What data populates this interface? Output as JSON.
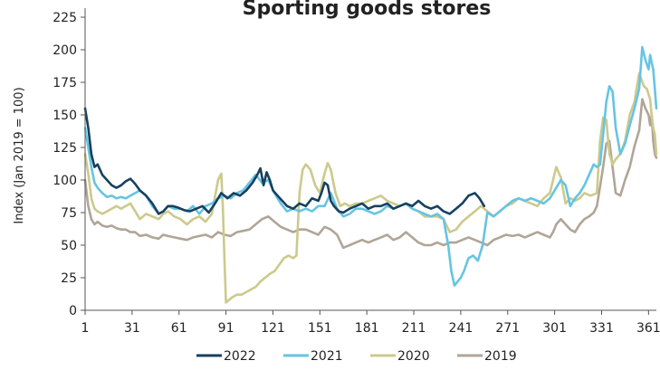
{
  "chart_data": {
    "type": "line",
    "title": "Sporting goods stores",
    "xlabel": "",
    "ylabel": "Index (Jan 2019 = 100)",
    "xlim": [
      1,
      366
    ],
    "ylim": [
      0,
      225
    ],
    "x_ticks": [
      1,
      31,
      61,
      91,
      121,
      151,
      181,
      211,
      241,
      271,
      301,
      331,
      361
    ],
    "y_ticks": [
      0,
      25,
      50,
      75,
      100,
      125,
      150,
      175,
      200,
      225
    ],
    "grid": false,
    "legend_position": "bottom",
    "series": [
      {
        "name": "2022",
        "color": "#17415f",
        "x": [
          1,
          3,
          5,
          7,
          9,
          12,
          15,
          18,
          21,
          24,
          27,
          30,
          33,
          36,
          40,
          44,
          48,
          51,
          54,
          57,
          60,
          64,
          68,
          72,
          76,
          80,
          84,
          88,
          92,
          96,
          100,
          104,
          108,
          111,
          113,
          115,
          117,
          119,
          121,
          124,
          127,
          130,
          134,
          138,
          142,
          146,
          150,
          152,
          154,
          156,
          158,
          160,
          163,
          166,
          170,
          174,
          178,
          182,
          186,
          190,
          194,
          198,
          202,
          206,
          210,
          214,
          218,
          222,
          226,
          230,
          234,
          238,
          242,
          246,
          250,
          253,
          256
        ],
        "values": [
          155,
          140,
          120,
          110,
          112,
          104,
          100,
          96,
          94,
          96,
          99,
          101,
          97,
          92,
          88,
          82,
          74,
          76,
          80,
          80,
          79,
          77,
          76,
          78,
          80,
          75,
          82,
          90,
          86,
          90,
          88,
          92,
          98,
          104,
          109,
          96,
          106,
          100,
          92,
          88,
          84,
          80,
          78,
          82,
          80,
          86,
          84,
          90,
          98,
          96,
          84,
          80,
          76,
          75,
          78,
          80,
          82,
          78,
          80,
          80,
          82,
          78,
          80,
          82,
          80,
          84,
          80,
          78,
          80,
          76,
          74,
          78,
          82,
          88,
          90,
          86,
          80
        ]
      },
      {
        "name": "2021",
        "color": "#66c4e3",
        "x": [
          1,
          3,
          5,
          7,
          9,
          12,
          15,
          18,
          21,
          24,
          27,
          30,
          33,
          36,
          40,
          44,
          48,
          51,
          54,
          58,
          62,
          66,
          70,
          74,
          78,
          82,
          86,
          90,
          94,
          98,
          102,
          106,
          110,
          114,
          118,
          122,
          126,
          130,
          134,
          138,
          142,
          146,
          150,
          154,
          158,
          162,
          166,
          170,
          174,
          178,
          182,
          186,
          190,
          194,
          198,
          202,
          206,
          210,
          214,
          218,
          222,
          226,
          230,
          233,
          235,
          237,
          239,
          241,
          243,
          246,
          249,
          252,
          255,
          258,
          262,
          266,
          270,
          274,
          278,
          282,
          286,
          290,
          294,
          298,
          300,
          302,
          305,
          308,
          311,
          314,
          317,
          320,
          323,
          326,
          328,
          330,
          332,
          334,
          336,
          338,
          340,
          343,
          346,
          349,
          352,
          355,
          357,
          359,
          361,
          362,
          363,
          364,
          365,
          366
        ],
        "values": [
          140,
          125,
          110,
          98,
          94,
          90,
          87,
          88,
          86,
          87,
          86,
          88,
          90,
          92,
          88,
          80,
          74,
          76,
          80,
          78,
          78,
          76,
          80,
          74,
          80,
          82,
          86,
          88,
          86,
          90,
          92,
          98,
          104,
          98,
          100,
          90,
          82,
          76,
          78,
          76,
          78,
          76,
          80,
          80,
          90,
          78,
          72,
          74,
          78,
          78,
          76,
          74,
          76,
          80,
          78,
          80,
          82,
          78,
          76,
          74,
          72,
          74,
          70,
          50,
          30,
          19,
          22,
          25,
          30,
          40,
          42,
          38,
          50,
          75,
          72,
          76,
          80,
          84,
          86,
          84,
          86,
          84,
          82,
          86,
          90,
          94,
          100,
          96,
          80,
          86,
          90,
          96,
          104,
          112,
          110,
          112,
          135,
          160,
          172,
          168,
          140,
          120,
          128,
          142,
          155,
          170,
          202,
          192,
          185,
          196,
          190,
          185,
          170,
          155
        ]
      },
      {
        "name": "2020",
        "color": "#cdc98c",
        "x": [
          1,
          3,
          5,
          7,
          9,
          12,
          15,
          18,
          21,
          24,
          27,
          30,
          33,
          36,
          40,
          44,
          48,
          51,
          54,
          58,
          62,
          66,
          70,
          74,
          78,
          82,
          86,
          88,
          89,
          90,
          91,
          93,
          95,
          98,
          101,
          104,
          107,
          110,
          113,
          116,
          119,
          122,
          125,
          128,
          131,
          134,
          136,
          138,
          140,
          142,
          145,
          148,
          151,
          154,
          156,
          158,
          161,
          164,
          167,
          170,
          174,
          178,
          182,
          186,
          190,
          194,
          198,
          202,
          206,
          210,
          214,
          218,
          222,
          226,
          230,
          234,
          238,
          242,
          246,
          250,
          254,
          258,
          262,
          266,
          270,
          274,
          278,
          282,
          286,
          290,
          294,
          298,
          300,
          302,
          305,
          308,
          311,
          314,
          317,
          320,
          324,
          328,
          330,
          332,
          334,
          336,
          338,
          340,
          343,
          346,
          349,
          352,
          355,
          358,
          360,
          362,
          363,
          364,
          365,
          366
        ],
        "values": [
          120,
          105,
          86,
          78,
          76,
          74,
          76,
          78,
          80,
          78,
          80,
          82,
          76,
          70,
          74,
          72,
          70,
          74,
          76,
          72,
          70,
          66,
          70,
          72,
          68,
          74,
          100,
          105,
          80,
          40,
          6,
          8,
          10,
          12,
          12,
          14,
          16,
          18,
          22,
          25,
          28,
          30,
          35,
          40,
          42,
          40,
          42,
          90,
          108,
          112,
          108,
          96,
          90,
          105,
          113,
          108,
          90,
          80,
          82,
          80,
          82,
          82,
          84,
          86,
          88,
          84,
          82,
          80,
          82,
          78,
          76,
          72,
          72,
          72,
          70,
          60,
          62,
          68,
          72,
          76,
          80,
          76,
          72,
          76,
          80,
          82,
          86,
          84,
          82,
          80,
          86,
          90,
          100,
          110,
          102,
          82,
          86,
          84,
          86,
          90,
          88,
          90,
          130,
          148,
          146,
          120,
          112,
          116,
          120,
          130,
          150,
          160,
          182,
          172,
          170,
          162,
          150,
          140,
          135,
          120
        ]
      },
      {
        "name": "2019",
        "color": "#b0a597",
        "x": [
          1,
          3,
          5,
          7,
          9,
          12,
          15,
          18,
          21,
          24,
          27,
          30,
          33,
          36,
          40,
          44,
          48,
          51,
          54,
          58,
          62,
          66,
          70,
          74,
          78,
          82,
          86,
          90,
          94,
          98,
          102,
          106,
          110,
          114,
          118,
          122,
          126,
          130,
          134,
          138,
          142,
          146,
          150,
          154,
          158,
          162,
          166,
          170,
          174,
          178,
          182,
          186,
          190,
          194,
          198,
          202,
          206,
          210,
          214,
          218,
          222,
          226,
          230,
          234,
          238,
          242,
          246,
          250,
          254,
          258,
          262,
          266,
          270,
          274,
          278,
          282,
          286,
          290,
          294,
          298,
          300,
          302,
          305,
          308,
          311,
          314,
          317,
          320,
          323,
          326,
          328,
          330,
          332,
          334,
          336,
          338,
          340,
          343,
          346,
          349,
          352,
          355,
          357,
          359,
          361,
          362,
          363,
          364,
          365,
          366
        ],
        "values": [
          100,
          80,
          70,
          66,
          68,
          65,
          64,
          65,
          63,
          62,
          62,
          60,
          60,
          57,
          58,
          56,
          55,
          58,
          57,
          56,
          55,
          54,
          56,
          57,
          58,
          56,
          60,
          58,
          57,
          60,
          61,
          62,
          66,
          70,
          72,
          68,
          64,
          62,
          60,
          62,
          62,
          60,
          58,
          64,
          62,
          58,
          48,
          50,
          52,
          54,
          52,
          54,
          56,
          58,
          54,
          56,
          60,
          56,
          52,
          50,
          50,
          52,
          50,
          52,
          52,
          54,
          56,
          54,
          52,
          50,
          54,
          56,
          58,
          57,
          58,
          56,
          58,
          60,
          58,
          56,
          60,
          66,
          70,
          66,
          62,
          60,
          66,
          70,
          72,
          75,
          80,
          95,
          110,
          128,
          130,
          110,
          90,
          88,
          100,
          110,
          126,
          138,
          162,
          155,
          150,
          142,
          150,
          130,
          120,
          117
        ]
      }
    ]
  }
}
